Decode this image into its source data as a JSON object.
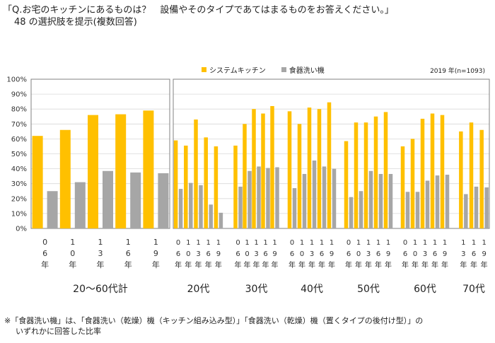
{
  "question": {
    "line1": "「Q.お宅のキッチンにあるものは？　設備やそのタイプであてはまるものをお答えください。」",
    "line2": "48 の選択肢を提示(複数回答)"
  },
  "sample_note": "2019 年(n=1093)",
  "footnote": {
    "line1": "※「食器洗い機」は、「食器洗い（乾燥）機（キッチン組み込み型）」「食器洗い（乾燥）機（置くタイプの後付け型）」の",
    "line2": "いずれかに回答した比率"
  },
  "colors": {
    "series1": "#FFC000",
    "series2": "#A6A6A6",
    "axis": "#BFBFBF",
    "frame": "#808080"
  },
  "chart_data": {
    "type": "bar",
    "title": "",
    "xlabel": "",
    "ylabel": "",
    "ylim": [
      0,
      100
    ],
    "yticks": [
      "0%",
      "10%",
      "20%",
      "30%",
      "40%",
      "50%",
      "60%",
      "70%",
      "80%",
      "90%",
      "100%"
    ],
    "legend": [
      "システムキッチン",
      "食器洗い機"
    ],
    "legend_position": "top",
    "panels": [
      {
        "name": "20〜60代計",
        "categories": [
          "06年",
          "10年",
          "13年",
          "16年",
          "19年"
        ],
        "tick_chars": [
          [
            "0",
            "6",
            "年"
          ],
          [
            "1",
            "0",
            "年"
          ],
          [
            "1",
            "3",
            "年"
          ],
          [
            "1",
            "6",
            "年"
          ],
          [
            "1",
            "9",
            "年"
          ]
        ],
        "series": [
          {
            "name": "システムキッチン",
            "values": [
              62,
              66,
              76,
              76.5,
              79
            ]
          },
          {
            "name": "食器洗い機",
            "values": [
              25,
              31,
              38.5,
              37.5,
              37
            ]
          }
        ]
      },
      {
        "group": "20代",
        "categories": [
          "06年",
          "10年",
          "13年",
          "16年",
          "19年"
        ],
        "tick_chars": [
          [
            "0",
            "6",
            "年"
          ],
          [
            "1",
            "0",
            "年"
          ],
          [
            "1",
            "3",
            "年"
          ],
          [
            "1",
            "6",
            "年"
          ],
          [
            "1",
            "9",
            "年"
          ]
        ],
        "series": [
          {
            "name": "システムキッチン",
            "values": [
              59,
              55.5,
              73,
              61,
              55
            ]
          },
          {
            "name": "食器洗い機",
            "values": [
              26.5,
              30.5,
              29,
              16,
              10.5
            ]
          }
        ]
      },
      {
        "group": "30代",
        "categories": [
          "06年",
          "10年",
          "13年",
          "16年",
          "19年"
        ],
        "tick_chars": [
          [
            "0",
            "6",
            "年"
          ],
          [
            "1",
            "0",
            "年"
          ],
          [
            "1",
            "3",
            "年"
          ],
          [
            "1",
            "6",
            "年"
          ],
          [
            "1",
            "9",
            "年"
          ]
        ],
        "series": [
          {
            "name": "システムキッチン",
            "values": [
              55.5,
              70,
              80,
              77,
              82
            ]
          },
          {
            "name": "食器洗い機",
            "values": [
              28,
              38.5,
              41.5,
              40.5,
              41
            ]
          }
        ]
      },
      {
        "group": "40代",
        "categories": [
          "06年",
          "10年",
          "13年",
          "16年",
          "19年"
        ],
        "tick_chars": [
          [
            "0",
            "6",
            "年"
          ],
          [
            "1",
            "0",
            "年"
          ],
          [
            "1",
            "3",
            "年"
          ],
          [
            "1",
            "6",
            "年"
          ],
          [
            "1",
            "9",
            "年"
          ]
        ],
        "series": [
          {
            "name": "システムキッチン",
            "values": [
              78.5,
              70,
              81,
              80,
              84.5
            ]
          },
          {
            "name": "食器洗い機",
            "values": [
              27,
              36.5,
              45.5,
              41.5,
              40
            ]
          }
        ]
      },
      {
        "group": "50代",
        "categories": [
          "06年",
          "10年",
          "13年",
          "16年",
          "19年"
        ],
        "tick_chars": [
          [
            "0",
            "6",
            "年"
          ],
          [
            "1",
            "0",
            "年"
          ],
          [
            "1",
            "3",
            "年"
          ],
          [
            "1",
            "6",
            "年"
          ],
          [
            "1",
            "9",
            "年"
          ]
        ],
        "series": [
          {
            "name": "システムキッチン",
            "values": [
              58.5,
              71,
              71,
              75,
              78
            ]
          },
          {
            "name": "食器洗い機",
            "values": [
              21,
              25,
              38.5,
              36.5,
              36.5
            ]
          }
        ]
      },
      {
        "group": "60代",
        "categories": [
          "06年",
          "10年",
          "13年",
          "16年",
          "19年"
        ],
        "tick_chars": [
          [
            "0",
            "6",
            "年"
          ],
          [
            "1",
            "0",
            "年"
          ],
          [
            "1",
            "3",
            "年"
          ],
          [
            "1",
            "6",
            "年"
          ],
          [
            "1",
            "9",
            "年"
          ]
        ],
        "series": [
          {
            "name": "システムキッチン",
            "values": [
              55,
              60,
              73.5,
              77,
              76
            ]
          },
          {
            "name": "食器洗い機",
            "values": [
              24.5,
              24.5,
              32,
              35.5,
              36
            ]
          }
        ]
      },
      {
        "group": "70代",
        "categories": [
          "13年",
          "16年",
          "19年"
        ],
        "tick_chars": [
          [
            "1",
            "3",
            "年"
          ],
          [
            "1",
            "6",
            "年"
          ],
          [
            "1",
            "9",
            "年"
          ]
        ],
        "series": [
          {
            "name": "システムキッチン",
            "values": [
              65,
              71,
              66
            ]
          },
          {
            "name": "食器洗い機",
            "values": [
              23,
              28,
              27.5
            ]
          }
        ]
      }
    ]
  }
}
